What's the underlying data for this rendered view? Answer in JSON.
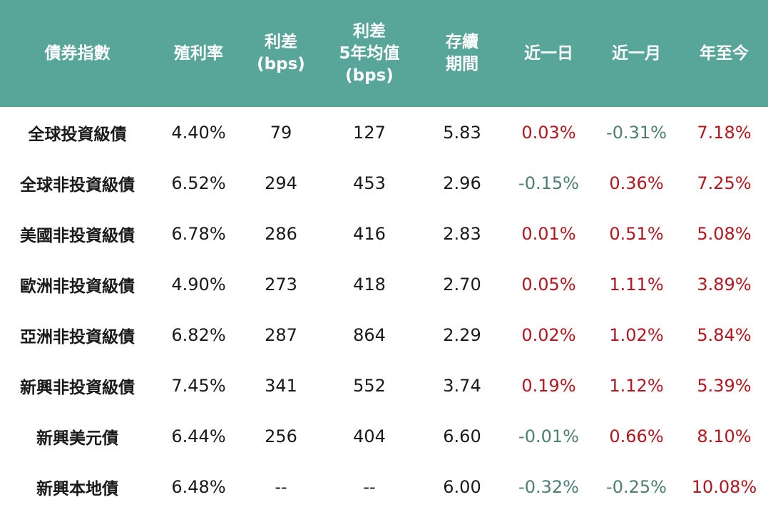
{
  "colors": {
    "header_bg": "#58a59a",
    "positive": "#b5161e",
    "negative": "#4d7f73"
  },
  "headers": [
    [
      "債券指數"
    ],
    [
      "殖利率"
    ],
    [
      "利差",
      "(bps)"
    ],
    [
      "利差",
      "5年均值",
      "(bps)"
    ],
    [
      "存續",
      "期間"
    ],
    [
      "近一日"
    ],
    [
      "近一月"
    ],
    [
      "年至今"
    ]
  ],
  "rows": [
    {
      "name": "全球投資級債",
      "yield": "4.40%",
      "spread": "79",
      "spread_5y": "127",
      "duration": "5.83",
      "d1": "0.03%",
      "m1": "-0.31%",
      "ytd": "7.18%"
    },
    {
      "name": "全球非投資級債",
      "yield": "6.52%",
      "spread": "294",
      "spread_5y": "453",
      "duration": "2.96",
      "d1": "-0.15%",
      "m1": "0.36%",
      "ytd": "7.25%"
    },
    {
      "name": "美國非投資級債",
      "yield": "6.78%",
      "spread": "286",
      "spread_5y": "416",
      "duration": "2.83",
      "d1": "0.01%",
      "m1": "0.51%",
      "ytd": "5.08%"
    },
    {
      "name": "歐洲非投資級債",
      "yield": "4.90%",
      "spread": "273",
      "spread_5y": "418",
      "duration": "2.70",
      "d1": "0.05%",
      "m1": "1.11%",
      "ytd": "3.89%"
    },
    {
      "name": "亞洲非投資級債",
      "yield": "6.82%",
      "spread": "287",
      "spread_5y": "864",
      "duration": "2.29",
      "d1": "0.02%",
      "m1": "1.02%",
      "ytd": "5.84%"
    },
    {
      "name": "新興非投資級債",
      "yield": "7.45%",
      "spread": "341",
      "spread_5y": "552",
      "duration": "3.74",
      "d1": "0.19%",
      "m1": "1.12%",
      "ytd": "5.39%"
    },
    {
      "name": "新興美元債",
      "yield": "6.44%",
      "spread": "256",
      "spread_5y": "404",
      "duration": "6.60",
      "d1": "-0.01%",
      "m1": "0.66%",
      "ytd": "8.10%"
    },
    {
      "name": "新興本地債",
      "yield": "6.48%",
      "spread": "--",
      "spread_5y": "--",
      "duration": "6.00",
      "d1": "-0.32%",
      "m1": "-0.25%",
      "ytd": "10.08%"
    }
  ]
}
